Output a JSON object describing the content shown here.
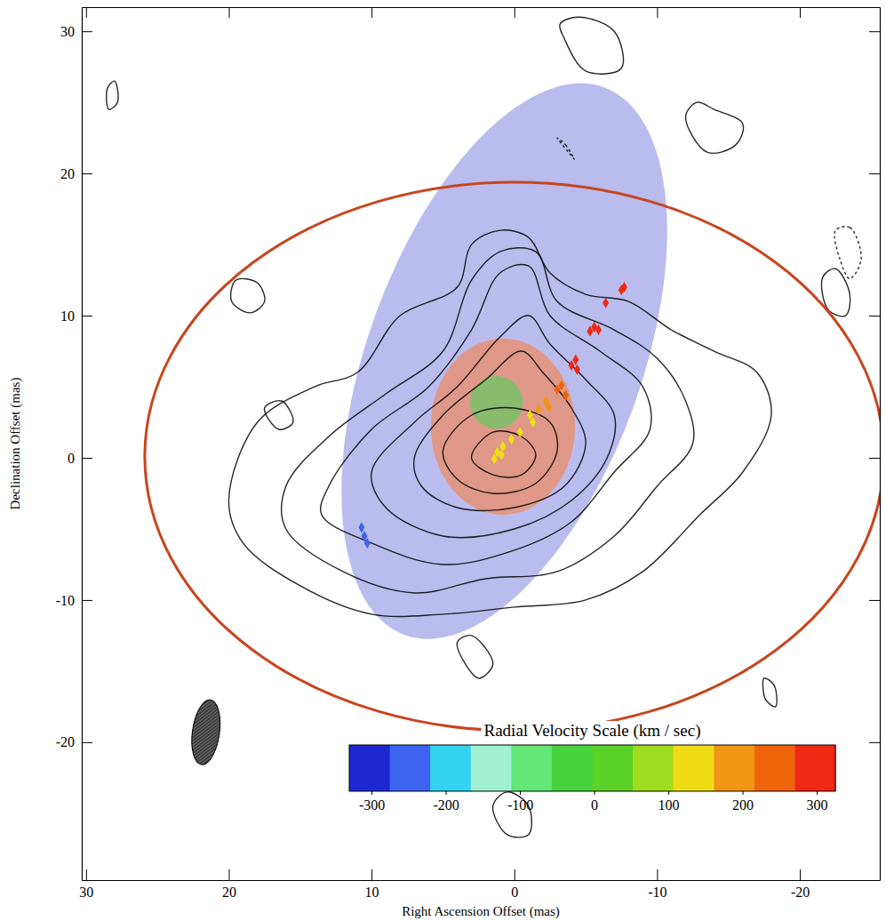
{
  "chart_data": {
    "type": "contour",
    "x_label": "Right Ascension Offset (mas)",
    "y_label": "Declination Offset (mas)",
    "xlim": [
      30.3,
      -25.6
    ],
    "ylim": [
      -29.7,
      31.7
    ],
    "xticks": [
      30,
      20,
      10,
      0,
      -10,
      -20
    ],
    "yticks": [
      -20,
      -10,
      0,
      10,
      20,
      30
    ],
    "contours": [
      {
        "line_style": "solid",
        "ra": [
          3,
          1.5,
          -0.5,
          -1.5,
          -0.5,
          1.5
        ],
        "dec": [
          0,
          1.8,
          1.5,
          0.2,
          -1.2,
          -1.2
        ]
      },
      {
        "line_style": "solid",
        "ra": [
          5,
          3,
          0,
          -2.5,
          -3,
          -1.5,
          1.5,
          4
        ],
        "dec": [
          0.5,
          3,
          3.5,
          2.5,
          0.5,
          -1.8,
          -2.5,
          -1.5
        ]
      },
      {
        "line_style": "solid",
        "ra": [
          7,
          5,
          2,
          -0.5,
          -2,
          -4,
          -5,
          -3.5,
          0,
          4,
          6.5
        ],
        "dec": [
          0,
          3,
          5.5,
          7.5,
          6,
          3.5,
          1,
          -2,
          -3.5,
          -3.5,
          -2
        ]
      },
      {
        "line_style": "solid",
        "ra": [
          10,
          7,
          4,
          1,
          -1,
          -2.5,
          -5,
          -7,
          -6.5,
          -4,
          0,
          5,
          9
        ],
        "dec": [
          -1,
          2.5,
          5,
          8.5,
          10,
          8,
          5.5,
          3,
          0,
          -3,
          -5,
          -5.5,
          -3.5
        ]
      },
      {
        "line_style": "solid",
        "ra": [
          13,
          10,
          6,
          3,
          1,
          -1,
          -2.5,
          -6,
          -9,
          -9.5,
          -7,
          -4,
          0,
          5,
          10,
          13.5
        ],
        "dec": [
          -2,
          2,
          5,
          9,
          13,
          13.5,
          10,
          7.5,
          5,
          2,
          -1,
          -4.5,
          -6.5,
          -7.5,
          -6,
          -4
        ]
      },
      {
        "line_style": "solid",
        "ra": [
          16,
          13,
          9,
          5,
          3,
          1,
          -1.5,
          -3,
          -7,
          -10,
          -12,
          -12.5,
          -10,
          -7,
          -3,
          2,
          7,
          12,
          16
        ],
        "dec": [
          -2,
          1.5,
          4.5,
          7.5,
          12.5,
          14.5,
          14.5,
          11,
          9,
          7,
          4,
          1,
          -2,
          -5.5,
          -8,
          -8.5,
          -9.5,
          -8,
          -5
        ]
      },
      {
        "line_style": "solid",
        "ra": [
          20,
          18,
          14,
          11,
          8,
          4,
          3,
          1,
          -1,
          -2.5,
          -5,
          -8,
          -11,
          -14,
          -17,
          -18,
          -16,
          -13,
          -9,
          -5,
          0,
          5,
          10,
          15,
          19
        ],
        "dec": [
          -3,
          2.5,
          5,
          6,
          10,
          12,
          15,
          16,
          15.5,
          13,
          11.5,
          11,
          9,
          7.5,
          6,
          3,
          -1,
          -4,
          -8,
          -10,
          -10.5,
          -11,
          -11,
          -9,
          -6
        ]
      },
      {
        "line_style": "solid",
        "ra": [
          19.5,
          18,
          17.5,
          18.5,
          19.8
        ],
        "dec": [
          12.5,
          12.3,
          11,
          10.2,
          11
        ]
      },
      {
        "line_style": "solid",
        "ra": [
          17.5,
          16.3,
          15.5,
          16.5
        ],
        "dec": [
          3.5,
          4,
          2.5,
          2
        ]
      },
      {
        "line_style": "solid",
        "ra": [
          -3.5,
          -5,
          -7.5,
          -7,
          -4.5,
          -3.2
        ],
        "dec": [
          29.5,
          27.2,
          27.4,
          30,
          31,
          30.5
        ]
      },
      {
        "line_style": "solid",
        "ra": [
          -12,
          -13.5,
          -15.5,
          -16,
          -14,
          -12.8
        ],
        "dec": [
          24,
          21.5,
          22,
          23.5,
          24.5,
          25
        ]
      },
      {
        "line_style": "solid",
        "ra": [
          -17.5,
          -18.2,
          -18.3,
          -17.6
        ],
        "dec": [
          -15.5,
          -16,
          -17.5,
          -17
        ]
      },
      {
        "line_style": "solid",
        "ra": [
          1.5,
          0.5,
          -1,
          -1,
          0.5
        ],
        "dec": [
          -24.5,
          -23.5,
          -24.5,
          -26.5,
          -26.5
        ]
      },
      {
        "line_style": "solid",
        "ra": [
          4,
          3,
          1.5,
          2.5
        ],
        "dec": [
          -13,
          -12.5,
          -14.5,
          -15.5
        ]
      },
      {
        "line_style": "solid",
        "ra": [
          -21.6,
          -22.5,
          -23.5,
          -23.2,
          -22
        ],
        "dec": [
          12.7,
          13.3,
          11.5,
          10,
          10.4
        ]
      },
      {
        "line_style": "solid",
        "ra": [
          28,
          28.5,
          28.4,
          27.8
        ],
        "dec": [
          26.5,
          26,
          24.5,
          25
        ]
      },
      {
        "line_style": "dashed",
        "ra": [
          -3,
          -3.6,
          -4.2,
          -3.8
        ],
        "dec": [
          22.5,
          22,
          21,
          21.5
        ]
      },
      {
        "line_style": "dashed",
        "ra": [
          -22.5,
          -23.5,
          -24.3,
          -23.5,
          -22.8
        ],
        "dec": [
          16,
          16.2,
          14,
          12.6,
          14
        ]
      }
    ],
    "ellipses": [
      {
        "type": "filled",
        "color": "#b3b5ec",
        "ra": 0.7,
        "dec": 6.8,
        "semi_major": 20.5,
        "semi_minor": 9.6,
        "position_angle": -20
      },
      {
        "type": "filled",
        "color": "#e3937b",
        "ra": 0.8,
        "dec": 2.2,
        "semi_major": 6.2,
        "semi_minor": 5.05,
        "position_angle": 0
      },
      {
        "type": "filled",
        "color": "#7fbf6a",
        "ra": 1.25,
        "dec": 3.9,
        "semi_major": 1.85,
        "semi_minor": 1.85,
        "position_angle": 0
      },
      {
        "type": "outline",
        "color": "#c8451e",
        "ra": 0,
        "dec": 0.1,
        "semi_major": 26,
        "semi_minor": 19.2,
        "position_angle": 90
      }
    ],
    "beam": {
      "color": "#3a3a3a",
      "ra": 21.6,
      "dec": -19.3,
      "semi_major": 2.3,
      "semi_minor": 0.95,
      "position_angle": -8
    },
    "masers": {
      "marker": "diamond",
      "ra": [
        -7.7,
        -7.5,
        -6.4,
        -5.6,
        -5.3,
        -5.9,
        -4.3,
        -4.0,
        -4.4,
        -3.3,
        -3.0,
        -3.6,
        -2.2,
        -2.4,
        -1.7,
        -1.1,
        -1.3,
        -0.4,
        0.2,
        0.8,
        1.2,
        1.4,
        0.9,
        10.7,
        10.5,
        10.3
      ],
      "dec": [
        12.0,
        11.8,
        10.9,
        9.2,
        8.9,
        9.0,
        6.9,
        6.5,
        6.2,
        5.1,
        4.8,
        4.4,
        4.0,
        3.6,
        3.4,
        3.0,
        2.5,
        1.8,
        1.3,
        0.8,
        0.4,
        -0.1,
        0.2,
        -4.9,
        -5.5,
        -6.0
      ],
      "velocity": [
        310,
        305,
        300,
        295,
        290,
        292,
        285,
        280,
        282,
        245,
        240,
        250,
        200,
        195,
        185,
        150,
        155,
        140,
        130,
        125,
        120,
        118,
        122,
        -260,
        -255,
        -250
      ]
    },
    "colorbar": {
      "title": "Radial Velocity Scale (km / sec)",
      "range": [
        -330,
        325
      ],
      "ticks": [
        -300,
        -200,
        -100,
        0,
        100,
        200,
        300
      ],
      "colors": [
        "#1e28d2",
        "#3c64f0",
        "#32d2f0",
        "#a0f0d2",
        "#64e678",
        "#46d23c",
        "#5ad228",
        "#a0dc1e",
        "#f0dc14",
        "#f09614",
        "#f0640a",
        "#f02814"
      ]
    }
  }
}
